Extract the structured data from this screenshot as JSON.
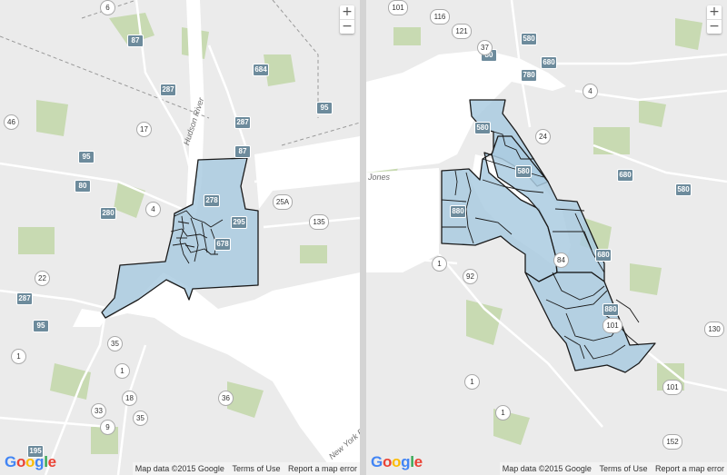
{
  "left_map": {
    "zoom_in": "+",
    "zoom_out": "−",
    "logo": [
      "G",
      "o",
      "o",
      "g",
      "l",
      "e"
    ],
    "footer": {
      "data": "Map data ©2015 Google",
      "terms": "Terms of Use",
      "report": "Report a map error"
    },
    "water_labels": {
      "hudson": "Hudson River",
      "ny_bay": "New York B"
    },
    "interstates": [
      "87",
      "684",
      "287",
      "287",
      "95",
      "87",
      "80",
      "278",
      "295",
      "280",
      "95",
      "287",
      "678",
      "195",
      "95"
    ],
    "routes": [
      "6",
      "17",
      "25A",
      "135",
      "4",
      "22",
      "46",
      "35",
      "18",
      "1",
      "9",
      "35",
      "36",
      "1",
      "33"
    ]
  },
  "right_map": {
    "zoom_in": "+",
    "zoom_out": "−",
    "logo": [
      "G",
      "o",
      "o",
      "g",
      "l",
      "e"
    ],
    "footer": {
      "data": "Map data ©2015 Google",
      "terms": "Terms of Use",
      "report": "Report a map error"
    },
    "place_labels": {
      "jones": "Jones"
    },
    "interstates": [
      "80",
      "580",
      "780",
      "680",
      "580",
      "580",
      "680",
      "580",
      "880",
      "680",
      "880"
    ],
    "routes": [
      "101",
      "116",
      "121",
      "37",
      "4",
      "24",
      "84",
      "1",
      "92",
      "101",
      "1",
      "152",
      "130",
      "101",
      "1"
    ]
  },
  "colors": {
    "region_fill": "#aacbe0",
    "region_stroke": "#1a1a1a",
    "water": "#ffffff",
    "park": "#c7d9b0"
  }
}
